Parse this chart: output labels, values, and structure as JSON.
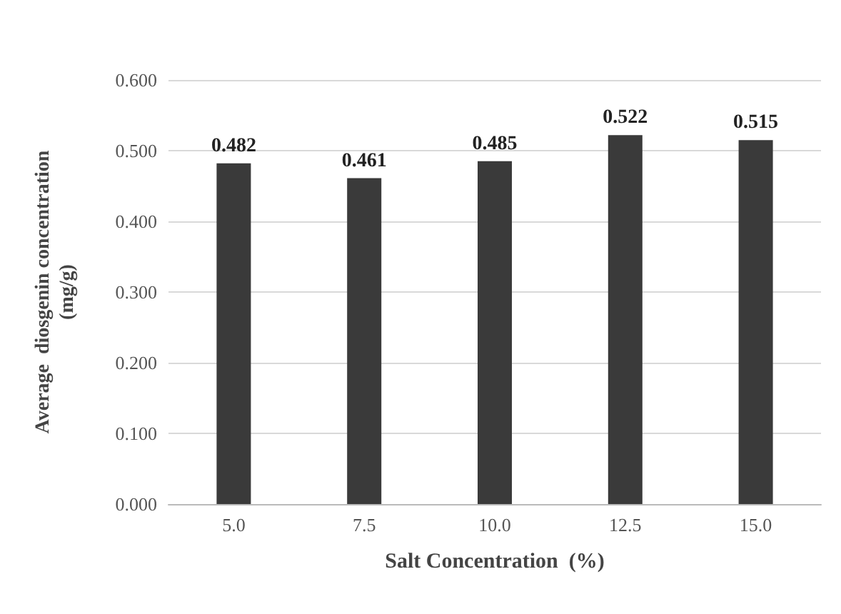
{
  "chart_data": {
    "type": "bar",
    "xlabel": "Salt Concentration  (%)",
    "ylabel": "Average  diosgenin concentration\n(mg/g)",
    "categories": [
      "5.0",
      "7.5",
      "10.0",
      "12.5",
      "15.0"
    ],
    "values": [
      0.482,
      0.461,
      0.485,
      0.522,
      0.515
    ],
    "color": "#3a3a3a",
    "data_labels": true,
    "ylim": [
      0,
      0.6
    ],
    "yticks": [
      {
        "value": 0,
        "label": "0.000"
      },
      {
        "value": 0.1,
        "label": "0.100"
      },
      {
        "value": 0.2,
        "label": "0.200"
      },
      {
        "value": 0.3,
        "label": "0.300"
      },
      {
        "value": 0.4,
        "label": "0.400"
      },
      {
        "value": 0.5,
        "label": "0.500"
      },
      {
        "value": 0.6,
        "label": "0.600"
      }
    ],
    "grid": "y"
  }
}
